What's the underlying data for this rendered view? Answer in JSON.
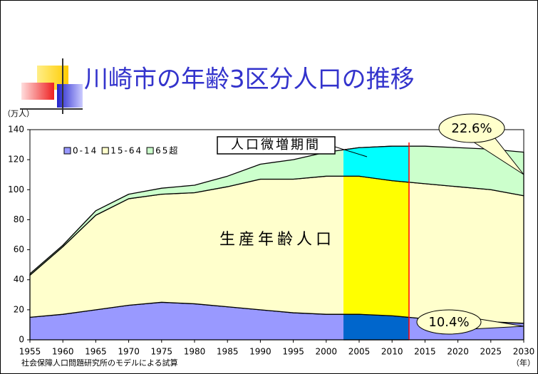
{
  "chart_data": {
    "type": "stacked_area",
    "title": "川崎市の年齢3区分人口の推移",
    "ylabel": "（万人）",
    "xlabel": "（年）",
    "source": "社会保障人口問題研究所のモデルによる試算",
    "annotations": [
      "生産年齢人口",
      "人口微増期間",
      "22.6%",
      "10.4%"
    ],
    "x": [
      1955,
      1960,
      1965,
      1970,
      1975,
      1980,
      1985,
      1990,
      1995,
      2000,
      2005,
      2010,
      2015,
      2020,
      2025,
      2030
    ],
    "xlim": [
      1955,
      2030
    ],
    "xticks": [
      1955,
      1960,
      1965,
      1970,
      1975,
      1980,
      1985,
      1990,
      1995,
      2000,
      2005,
      2010,
      2015,
      2020,
      2025,
      2030
    ],
    "ylim": [
      0,
      140
    ],
    "yticks": [
      0,
      20,
      40,
      60,
      80,
      100,
      120,
      140
    ],
    "legend": "top-left",
    "series": [
      {
        "name": "0-14",
        "color": "#9999ff",
        "highlight_color": "#0066cc",
        "values": [
          15,
          17,
          20,
          23,
          25,
          24,
          22,
          20,
          18,
          17,
          17,
          16,
          14,
          13,
          12,
          11
        ]
      },
      {
        "name": "15-64",
        "color": "#ffffcc",
        "highlight_color": "#ffff00",
        "values": [
          28,
          45,
          63,
          71,
          72,
          74,
          80,
          87,
          89,
          92,
          92,
          90,
          90,
          89,
          88,
          85
        ]
      },
      {
        "name": "65超",
        "color": "#ccffcc",
        "highlight_color": "#00ffff",
        "values": [
          1,
          1,
          3,
          3,
          4,
          5,
          7,
          10,
          13,
          16,
          19,
          23,
          25,
          26,
          27,
          29
        ]
      }
    ]
  }
}
